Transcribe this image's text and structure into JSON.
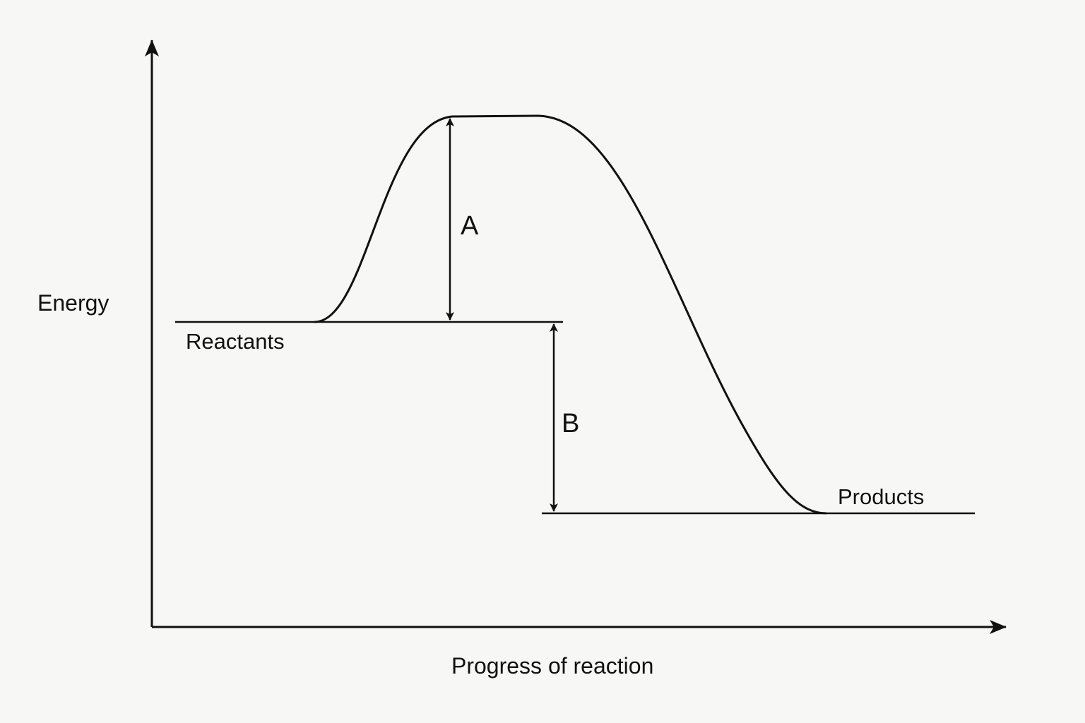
{
  "axes": {
    "y_label": "Energy",
    "x_label": "Progress of reaction"
  },
  "levels": {
    "reactants_label": "Reactants",
    "products_label": "Products"
  },
  "arrows": {
    "a_label": "A",
    "b_label": "B"
  },
  "colors": {
    "ink": "#111111",
    "background": "#f7f7f6"
  }
}
